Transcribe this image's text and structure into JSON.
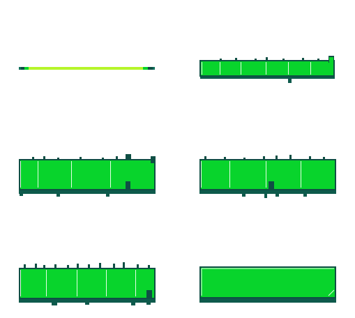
{
  "sheet": {
    "sprites": [
      {
        "name": "hp-bar-thin",
        "state": "thin-strip"
      },
      {
        "name": "hp-bar-jagged-wide",
        "state": "jagged"
      },
      {
        "name": "hp-bar-jagged-tall-a",
        "state": "jagged"
      },
      {
        "name": "hp-bar-jagged-tall-b",
        "state": "jagged"
      },
      {
        "name": "hp-bar-jagged-tall-c",
        "state": "jagged"
      },
      {
        "name": "hp-bar-clean",
        "state": "clean"
      }
    ]
  },
  "colors": {
    "fill": "#08d42c",
    "fill_light": "#2ee64a",
    "shadow": "#0e5a4c",
    "outline": "#0f4f44",
    "highlight": "#e6ffe6",
    "lime": "#b6f52a",
    "strip_end": "#11705c"
  }
}
